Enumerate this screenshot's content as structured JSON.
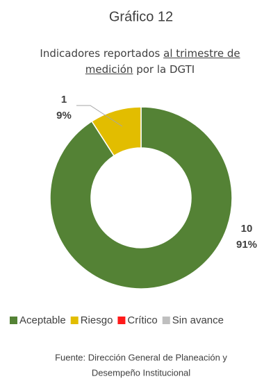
{
  "chart_data": {
    "type": "donut",
    "title": "Gráfico 12",
    "subtitle_parts": [
      "Indicadores reportados",
      "al trimestre de",
      "medición",
      "por la DGTI"
    ],
    "categories": [
      "Aceptable",
      "Riesgo",
      "Crítico",
      "Sin avance"
    ],
    "values": [
      10,
      1,
      0,
      0
    ],
    "percent_labels": [
      "91%",
      "9%",
      null,
      null
    ],
    "colors": [
      "#548235",
      "#e2bd00",
      "#ff1a1a",
      "#bfbfbf"
    ],
    "legend": "bottom",
    "source": [
      "Fuente: Dirección General de Planeación y",
      "Desempeño Institucional"
    ]
  }
}
